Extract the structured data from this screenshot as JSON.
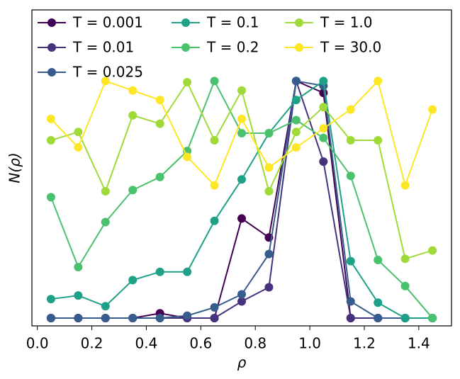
{
  "chart_data": {
    "type": "line",
    "x": [
      0.05,
      0.15,
      0.25,
      0.35,
      0.45,
      0.55,
      0.65,
      0.75,
      0.85,
      0.95,
      1.05,
      1.15,
      1.25,
      1.35,
      1.45
    ],
    "xlabel": "ρ",
    "ylabel": "N(ρ)",
    "xlim": [
      -0.02,
      1.52
    ],
    "xticks": [
      {
        "value": 0,
        "label": "0.0"
      },
      0.2,
      0.4,
      0.6,
      0.8,
      {
        "value": 1,
        "label": "1.0"
      },
      1.2,
      1.4
    ],
    "ylim": [
      -0.033,
      1.3
    ],
    "legend": "upper left",
    "series": [
      {
        "name": "T = 0.001",
        "color": "#440154",
        "values": [
          0,
          0,
          0,
          0,
          0.02,
          0,
          0,
          0.42,
          0.34,
          1,
          0.95,
          0,
          0,
          0,
          0
        ]
      },
      {
        "name": "T = 0.01",
        "color": "#46327e",
        "values": [
          0,
          0,
          0,
          0,
          0,
          0,
          0,
          0.07,
          0.13,
          1,
          0.66,
          0,
          0,
          0,
          0
        ]
      },
      {
        "name": "T = 0.025",
        "color": "#365c8d",
        "values": [
          0,
          0,
          0,
          0,
          0,
          0.01,
          0.045,
          0.1,
          0.27,
          1,
          0.98,
          0.07,
          0,
          0,
          0
        ]
      },
      {
        "name": "T = 0.1",
        "color": "#1fa187",
        "values": [
          0.08,
          0.095,
          0.05,
          0.16,
          0.195,
          0.195,
          0.41,
          0.585,
          0.78,
          0.92,
          1,
          0.24,
          0.065,
          0,
          0
        ]
      },
      {
        "name": "T = 0.2",
        "color": "#4ac16d",
        "values": [
          0.51,
          0.215,
          0.405,
          0.54,
          0.595,
          0.705,
          1,
          0.78,
          0.78,
          0.835,
          0.76,
          0.6,
          0.245,
          0.135,
          0
        ]
      },
      {
        "name": "T = 1.0",
        "color": "#a0da39",
        "values": [
          0.75,
          0.785,
          0.535,
          0.855,
          0.82,
          0.995,
          0.75,
          0.96,
          0.535,
          0.785,
          0.89,
          0.75,
          0.75,
          0.25,
          0.285
        ]
      },
      {
        "name": "T = 30.0",
        "color": "#fde725",
        "values": [
          0.84,
          0.72,
          1,
          0.96,
          0.92,
          0.68,
          0.56,
          0.84,
          0.635,
          0.72,
          0.8,
          0.88,
          1,
          0.56,
          0.88
        ]
      }
    ]
  }
}
